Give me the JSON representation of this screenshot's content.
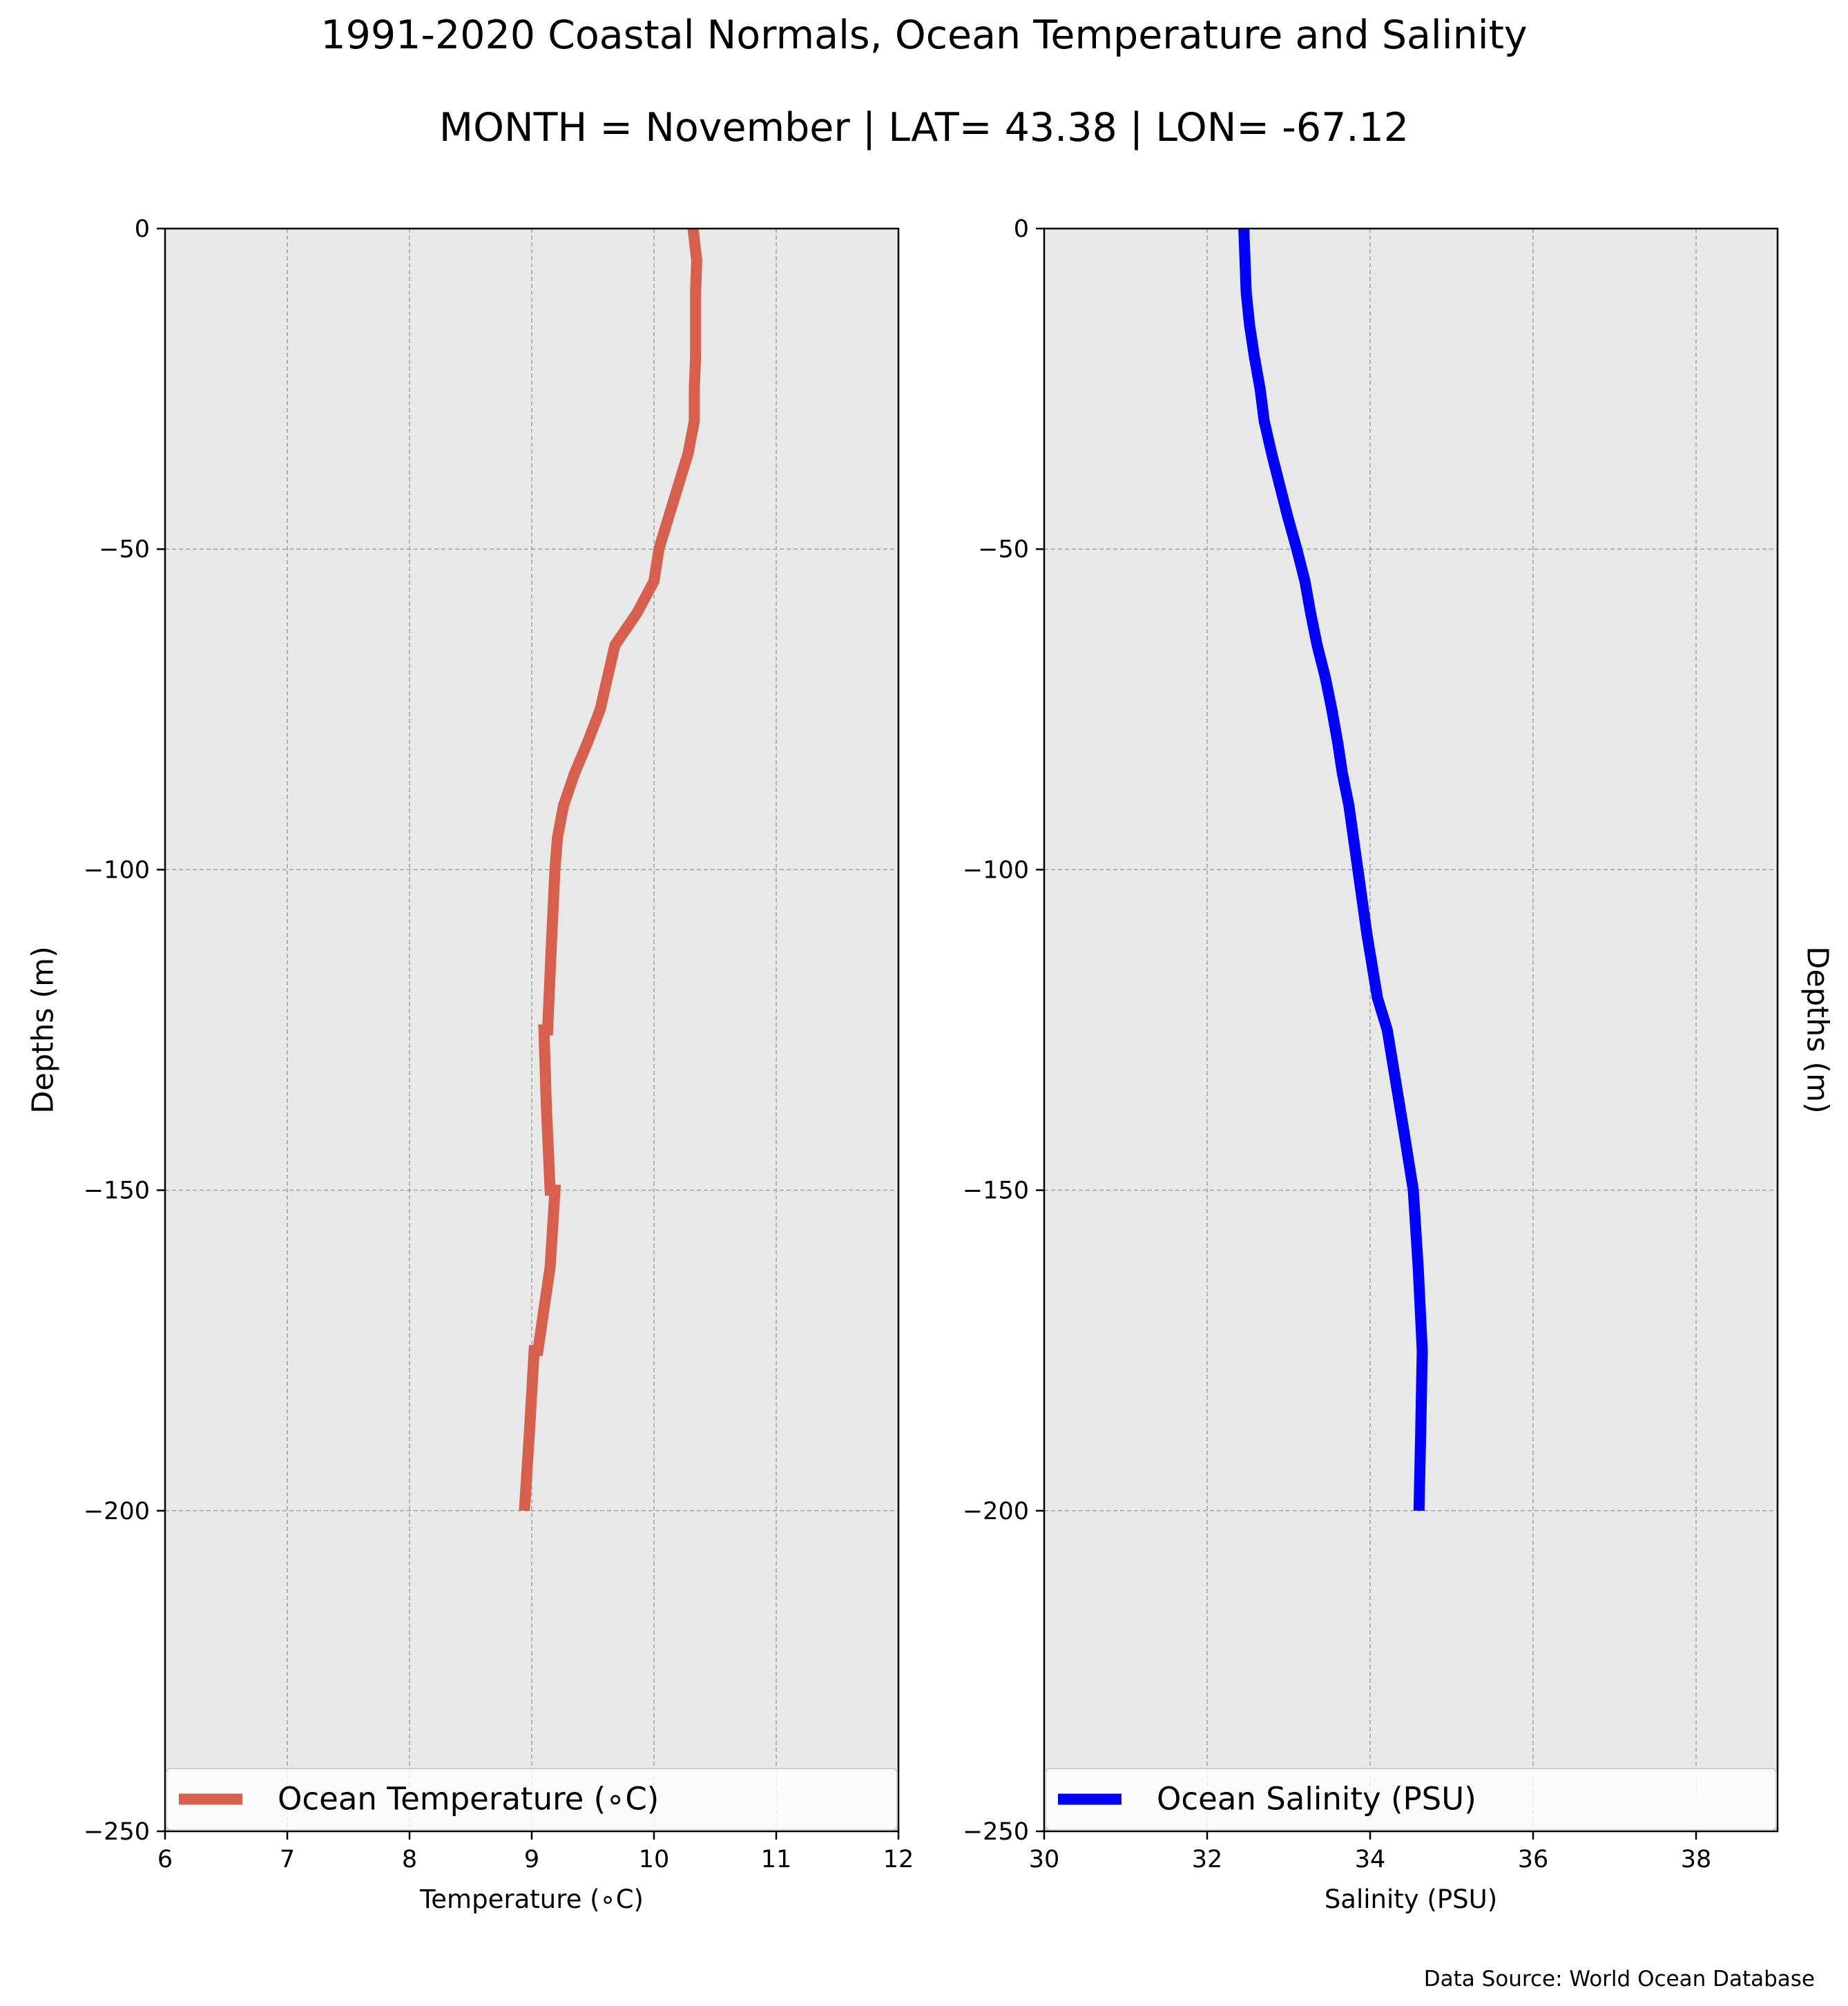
{
  "figure": {
    "title_line1": "1991-2020 Coastal Normals, Ocean Temperature and Salinity",
    "title_line2": "MONTH = November | LAT= 43.38 | LON= -67.12",
    "source": "Data Source: World Ocean Database",
    "background": "#ffffff",
    "axes_face": "#e8e8e8",
    "grid_color": "#a0a0a0"
  },
  "chart_data": [
    {
      "type": "line",
      "xlabel": "Temperature (∘C)",
      "ylabel": "Depths (m)",
      "ylabel_side": "left",
      "xlim": [
        6,
        12
      ],
      "ylim": [
        -250,
        0
      ],
      "xticks": [
        6,
        7,
        8,
        9,
        10,
        11,
        12
      ],
      "yticks": [
        0,
        -50,
        -100,
        -150,
        -200,
        -250
      ],
      "grid": true,
      "legend_position": "lower-center",
      "series": [
        {
          "name": "Ocean Temperature (∘C)",
          "color": "#d6604d",
          "x": [
            10.32,
            10.35,
            10.34,
            10.34,
            10.33,
            10.33,
            10.28,
            10.2,
            10.12,
            10.04,
            10.0,
            9.86,
            9.68,
            9.62,
            9.56,
            9.46,
            9.35,
            9.26,
            9.21,
            9.19,
            9.16,
            9.13,
            9.1,
            9.12,
            9.15,
            9.19,
            9.15,
            9.05,
            9.02,
            8.98,
            8.94
          ],
          "y": [
            0,
            -5,
            -10,
            -20,
            -25,
            -30,
            -35,
            -40,
            -45,
            -50,
            -55,
            -60,
            -65,
            -70,
            -75,
            -80,
            -85,
            -90,
            -95,
            -100,
            -112,
            -125,
            -125,
            -137,
            -150,
            -150,
            -162,
            -175,
            -175,
            -188,
            -200
          ]
        }
      ]
    },
    {
      "type": "line",
      "xlabel": "Salinity (PSU)",
      "ylabel": "Depths (m)",
      "ylabel_side": "right",
      "xlim": [
        30,
        39
      ],
      "ylim": [
        -250,
        0
      ],
      "xticks": [
        30,
        32,
        34,
        36,
        38
      ],
      "yticks": [
        0,
        -50,
        -100,
        -150,
        -200,
        -250
      ],
      "grid": true,
      "legend_position": "lower-center",
      "series": [
        {
          "name": "Ocean Salinity (PSU)",
          "color": "#0000ff",
          "x": [
            32.45,
            32.48,
            32.52,
            32.58,
            32.65,
            32.7,
            32.79,
            32.89,
            32.99,
            33.1,
            33.2,
            33.27,
            33.35,
            33.45,
            33.53,
            33.6,
            33.66,
            33.74,
            33.85,
            33.96,
            34.09,
            34.21,
            34.43,
            34.53,
            34.59,
            34.64,
            34.62,
            34.6
          ],
          "y": [
            0,
            -10,
            -15,
            -20,
            -25,
            -30,
            -35,
            -40,
            -45,
            -50,
            -55,
            -60,
            -65,
            -70,
            -75,
            -80,
            -85,
            -90,
            -100,
            -110,
            -120,
            -125,
            -142,
            -150,
            -162,
            -175,
            -188,
            -200
          ]
        }
      ]
    }
  ]
}
